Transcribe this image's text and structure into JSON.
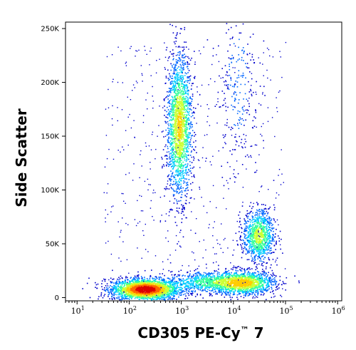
{
  "chart_data": {
    "type": "scatter",
    "subtype": "flow-cytometry-density-dot-plot",
    "xlabel": "CD305 PE-Cy™ 7",
    "ylabel": "Side Scatter",
    "x_scale": "log",
    "x_tick_labels": [
      {
        "value": 10,
        "base": "10",
        "exp": "1"
      },
      {
        "value": 100,
        "base": "10",
        "exp": "2"
      },
      {
        "value": 1000,
        "base": "10",
        "exp": "3"
      },
      {
        "value": 10000,
        "base": "10",
        "exp": "4"
      },
      {
        "value": 100000,
        "base": "10",
        "exp": "5"
      },
      {
        "value": 1000000,
        "base": "10",
        "exp": "6"
      }
    ],
    "y_ticks": [
      {
        "value": 0,
        "label": "0"
      },
      {
        "value": 50000,
        "label": "50K"
      },
      {
        "value": 100000,
        "label": "100K"
      },
      {
        "value": 150000,
        "label": "150K"
      },
      {
        "value": 200000,
        "label": "200K"
      },
      {
        "value": 250000,
        "label": "250K"
      }
    ],
    "xlim": [
      6,
      1200000
    ],
    "ylim": [
      -3000,
      256000
    ],
    "grid": false,
    "color_scale": [
      "#0000cc",
      "#0066ff",
      "#00ccff",
      "#33ff99",
      "#ccff33",
      "#ffcc00",
      "#ff6600",
      "#dd0000"
    ],
    "populations": [
      {
        "x_center": 200,
        "y_center": 8000,
        "x_spread_decades": 0.32,
        "y_spread": 5000,
        "density": 1.0
      },
      {
        "x_center": 900,
        "y_center": 160000,
        "x_spread_decades": 0.12,
        "y_spread": 33000,
        "density": 0.55
      },
      {
        "x_center": 15000,
        "y_center": 14000,
        "x_spread_decades": 0.3,
        "y_spread": 5500,
        "density": 0.6
      },
      {
        "x_center": 30000,
        "y_center": 58000,
        "x_spread_decades": 0.15,
        "y_spread": 12000,
        "density": 0.45
      },
      {
        "x_center": 3000,
        "y_center": 15000,
        "x_spread_decades": 0.35,
        "y_spread": 5000,
        "density": 0.3
      },
      {
        "x_center": 12000,
        "y_center": 200000,
        "x_spread_decades": 0.2,
        "y_spread": 45000,
        "density": 0.08
      }
    ]
  }
}
